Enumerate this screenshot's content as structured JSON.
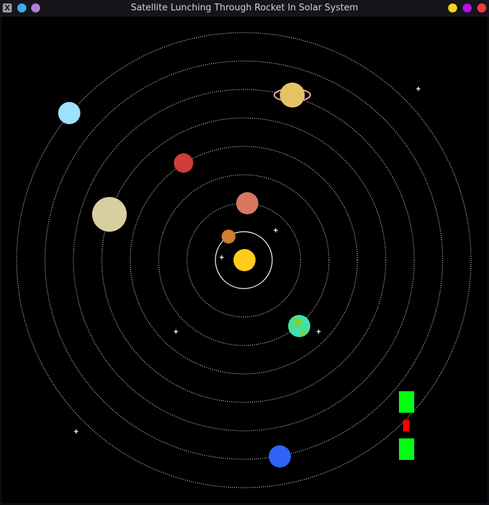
{
  "window": {
    "title": "Satellite Lunching Through Rocket In Solar System",
    "app_icon": "x11-app-icon",
    "left_buttons": [
      {
        "name": "on-all-desktops-icon",
        "color": "#3daee9"
      },
      {
        "name": "keep-above-icon",
        "color": "#b07fd6"
      }
    ],
    "right_buttons": [
      {
        "name": "minimize-button",
        "color": "#f7d21b"
      },
      {
        "name": "maximize-button",
        "color": "#b112e0"
      },
      {
        "name": "close-button",
        "color": "#f43b3b"
      }
    ]
  },
  "scene": {
    "background": "#000000",
    "orbit_color": "#ffffff",
    "sun": {
      "name": "sun",
      "color": "#fecc1b"
    },
    "planets": [
      {
        "name": "mercury",
        "color": "#cd7f32"
      },
      {
        "name": "venus",
        "color": "#d9765f"
      },
      {
        "name": "earth",
        "color": "#3ee0b4",
        "land_color": "#7ad43a"
      },
      {
        "name": "mars",
        "color": "#d23c3a"
      },
      {
        "name": "jupiter",
        "color": "#d8cfa0"
      },
      {
        "name": "saturn",
        "color": "#e5c364",
        "ring_color": "#e8a9b6"
      },
      {
        "name": "uranus",
        "color": "#9fe0ff"
      },
      {
        "name": "neptune",
        "color": "#2e63f6"
      }
    ],
    "rocket": {
      "name": "rocket",
      "body_color": "#ff0000",
      "booster_color": "#00ff11"
    },
    "star_color": "#ffffff"
  }
}
